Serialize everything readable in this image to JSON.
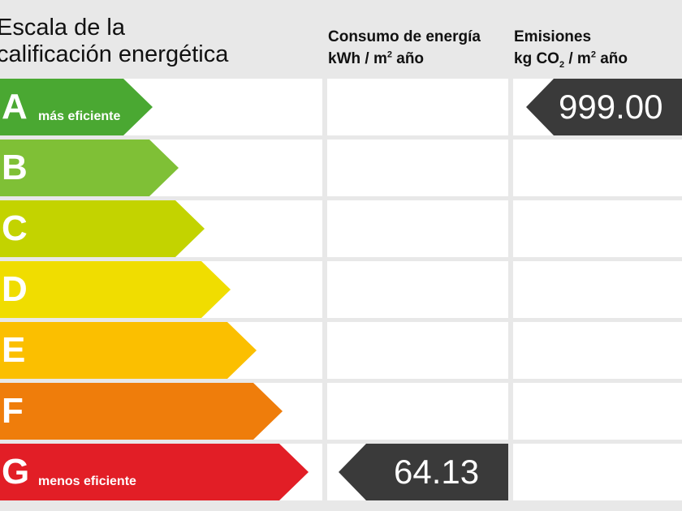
{
  "title": {
    "line1": "Escala de la",
    "line2": "calificación energética"
  },
  "columns": {
    "consumo": {
      "title": "Consumo de energía",
      "unit_prefix": "kWh / m",
      "unit_sup": "2",
      "unit_suffix": " año"
    },
    "emisiones": {
      "title": "Emisiones",
      "unit_prefix": "kg CO",
      "unit_sub": "2",
      "unit_mid": " / m",
      "unit_sup": "2",
      "unit_suffix": " año"
    }
  },
  "ratings": [
    {
      "letter": "A",
      "note": "más eficiente",
      "color": "#4aa832"
    },
    {
      "letter": "B",
      "note": "",
      "color": "#7fc036"
    },
    {
      "letter": "C",
      "note": "",
      "color": "#c3d300"
    },
    {
      "letter": "D",
      "note": "",
      "color": "#f0dd00"
    },
    {
      "letter": "E",
      "note": "",
      "color": "#fbbf00"
    },
    {
      "letter": "F",
      "note": "",
      "color": "#ef7d0b"
    },
    {
      "letter": "G",
      "note": "menos eficiente",
      "color": "#e21e26"
    }
  ],
  "consumo_value": {
    "rating": "G",
    "value": "64.13"
  },
  "emisiones_value": {
    "rating": "A",
    "value": "999.00"
  },
  "indicator_color": "#3a3a3a"
}
